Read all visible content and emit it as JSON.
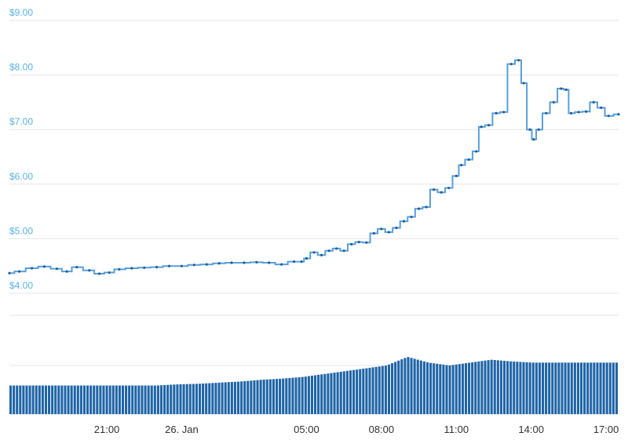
{
  "chart_data": {
    "type": "line",
    "colors": {
      "price_line": "#5a9fd8",
      "price_marker": "#1f5f9f",
      "volume_bar": "#1f65a7",
      "tick_label": "#5ab0e8",
      "grid": "#e6e6e6"
    },
    "y_axis": {
      "ylim": [
        3.5,
        9.0
      ],
      "ticks": [
        4,
        5,
        6,
        7,
        8,
        9
      ],
      "tick_labels": [
        "$4.00",
        "$5.00",
        "$6.00",
        "$7.00",
        "$8.00",
        "$9.00"
      ]
    },
    "x_axis": {
      "range_hours": [
        17.1,
        41.5
      ],
      "ticks": [
        21,
        24,
        29,
        32,
        35,
        38,
        41
      ],
      "tick_labels": [
        "21:00",
        "26. Jan",
        "05:00",
        "08:00",
        "11:00",
        "14:00",
        "17:00"
      ]
    },
    "grid": true,
    "series": [
      {
        "type": "line",
        "x": [
          17.1,
          17.5,
          18.0,
          18.5,
          19.0,
          19.4,
          19.8,
          20.3,
          20.7,
          21.1,
          21.5,
          22.0,
          22.5,
          23.0,
          23.5,
          24.0,
          24.5,
          25.0,
          25.5,
          26.0,
          26.5,
          27.0,
          27.5,
          28.0,
          28.5,
          28.8,
          29.0,
          29.3,
          29.6,
          29.9,
          30.2,
          30.5,
          30.8,
          31.1,
          31.4,
          31.7,
          32.0,
          32.3,
          32.6,
          32.9,
          33.2,
          33.5,
          33.8,
          34.1,
          34.4,
          34.7,
          35.0,
          35.2,
          35.5,
          35.8,
          36.0,
          36.3,
          36.6,
          36.9,
          37.2,
          37.5,
          37.7,
          37.95,
          38.1,
          38.3,
          38.6,
          38.9,
          39.2,
          39.4,
          39.6,
          39.9,
          40.2,
          40.5,
          40.8,
          41.1,
          41.5
        ],
        "y": [
          4.37,
          4.4,
          4.46,
          4.49,
          4.45,
          4.4,
          4.48,
          4.42,
          4.36,
          4.38,
          4.44,
          4.46,
          4.47,
          4.48,
          4.5,
          4.5,
          4.52,
          4.53,
          4.55,
          4.56,
          4.56,
          4.57,
          4.56,
          4.53,
          4.58,
          4.58,
          4.64,
          4.75,
          4.7,
          4.78,
          4.82,
          4.78,
          4.9,
          4.94,
          4.93,
          5.1,
          5.18,
          5.12,
          5.2,
          5.32,
          5.4,
          5.55,
          5.58,
          5.9,
          5.85,
          5.93,
          6.15,
          6.35,
          6.45,
          6.6,
          7.05,
          7.08,
          7.3,
          7.32,
          8.2,
          8.27,
          7.85,
          7.0,
          6.82,
          7.0,
          7.3,
          7.5,
          7.75,
          7.73,
          7.3,
          7.32,
          7.33,
          7.5,
          7.4,
          7.25,
          7.28
        ]
      },
      {
        "type": "bar",
        "role": "volume",
        "x_range": [
          17.1,
          41.5
        ],
        "bar_count": 190,
        "relative_heights": [
          0.5,
          0.5,
          0.5,
          0.5,
          0.5,
          0.5,
          0.5,
          0.5,
          0.52,
          0.53,
          0.55,
          0.57,
          0.6,
          0.62,
          0.65,
          0.7,
          0.75,
          0.8,
          0.85,
          1.0,
          0.9,
          0.85,
          0.9,
          0.95,
          0.92,
          0.9,
          0.9,
          0.9,
          0.9,
          0.9
        ]
      }
    ]
  }
}
